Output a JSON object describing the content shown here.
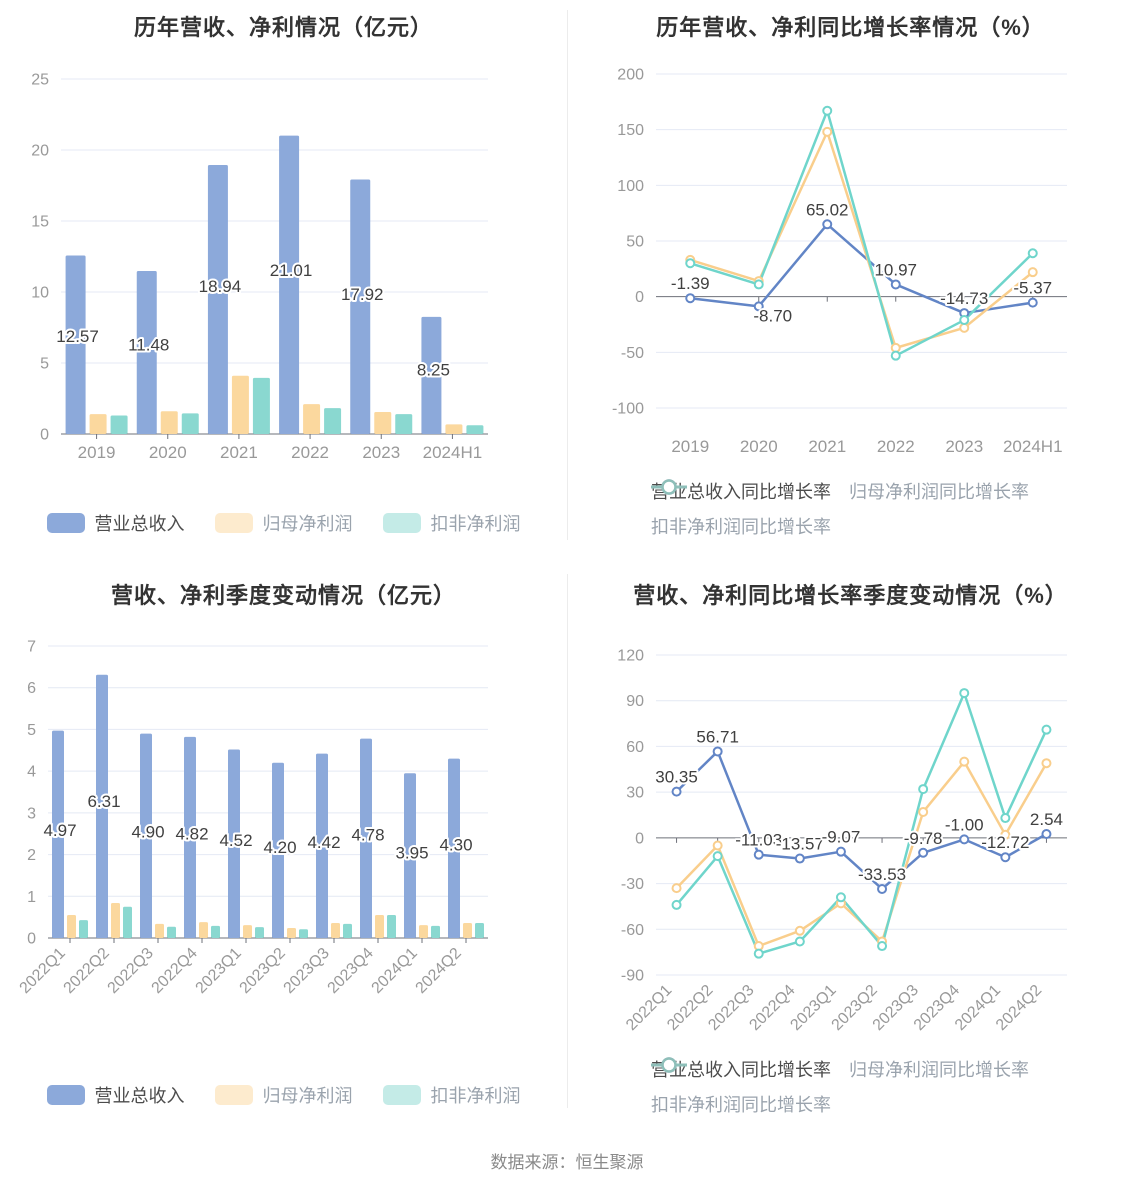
{
  "page": {
    "footer": "数据来源：恒生聚源"
  },
  "colors": {
    "bar_blue": "#8CA9DA",
    "bar_yellow": "#FBD89E",
    "bar_teal": "#8AD8D0",
    "line_blue": "#6285C6",
    "line_yellow": "#F9CE8C",
    "line_teal": "#6FD5CB",
    "grid": "#E4E9F4",
    "axis": "#6E7079",
    "tick_label": "#999999",
    "title": "#333333",
    "data_label": "#404040",
    "divider": "#ececec"
  },
  "chart_data": [
    {
      "type": "bar",
      "title": "历年营收、净利情况（亿元）",
      "ylim": [
        0,
        25
      ],
      "yticks": [
        0,
        5,
        10,
        15,
        20,
        25
      ],
      "grid": true,
      "legend_position": "bottom",
      "categories": [
        "2019",
        "2020",
        "2021",
        "2022",
        "2023",
        "2024H1"
      ],
      "series": [
        {
          "key": "revenue",
          "name": "营业总收入",
          "color": "#8CA9DA",
          "values": [
            12.57,
            11.48,
            18.94,
            21.01,
            17.92,
            8.25
          ],
          "labels": [
            "12.57",
            "11.48",
            "18.94",
            "21.01",
            "17.92",
            "8.25"
          ]
        },
        {
          "key": "net-profit",
          "name": "归母净利润",
          "color": "#FBD89E",
          "values": [
            1.4,
            1.6,
            4.1,
            2.1,
            1.55,
            0.68
          ]
        },
        {
          "key": "non-recurring-profit",
          "name": "扣非净利润",
          "color": "#8AD8D0",
          "values": [
            1.3,
            1.45,
            3.95,
            1.82,
            1.4,
            0.62
          ]
        }
      ]
    },
    {
      "type": "line",
      "title": "历年营收、净利同比增长率情况（%）",
      "ylim": [
        -100,
        200
      ],
      "yticks": [
        -100,
        -50,
        0,
        50,
        100,
        150,
        200
      ],
      "grid": true,
      "legend_position": "bottom",
      "categories": [
        "2019",
        "2020",
        "2021",
        "2022",
        "2023",
        "2024H1"
      ],
      "series": [
        {
          "key": "revenue-growth",
          "name": "营业总收入同比增长率",
          "color": "#6285C6",
          "values": [
            -1.39,
            -8.7,
            65.02,
            10.97,
            -14.73,
            -5.37
          ],
          "labels": [
            "-1.39",
            "-8.70",
            "65.02",
            "10.97",
            "-14.73",
            "-5.37"
          ]
        },
        {
          "key": "net-profit-growth",
          "name": "归母净利润同比增长率",
          "color": "#F9CE8C",
          "values": [
            33,
            14,
            148,
            -46,
            -28,
            22
          ]
        },
        {
          "key": "non-recurring-profit-growth",
          "name": "扣非净利润同比增长率",
          "color": "#6FD5CB",
          "values": [
            30,
            11,
            167,
            -53,
            -21,
            39
          ]
        }
      ]
    },
    {
      "type": "bar",
      "title": "营收、净利季度变动情况（亿元）",
      "ylim": [
        0,
        7
      ],
      "yticks": [
        0,
        1,
        2,
        3,
        4,
        5,
        6,
        7
      ],
      "grid": true,
      "legend_position": "bottom",
      "rotated_x_labels": true,
      "categories": [
        "2022Q1",
        "2022Q2",
        "2022Q3",
        "2022Q4",
        "2023Q1",
        "2023Q2",
        "2023Q3",
        "2023Q4",
        "2024Q1",
        "2024Q2"
      ],
      "series": [
        {
          "key": "revenue",
          "name": "营业总收入",
          "color": "#8CA9DA",
          "values": [
            4.97,
            6.31,
            4.9,
            4.82,
            4.52,
            4.2,
            4.42,
            4.78,
            3.95,
            4.3
          ],
          "labels": [
            "4.97",
            "6.31",
            "4.90",
            "4.82",
            "4.52",
            "4.20",
            "4.42",
            "4.78",
            "3.95",
            "4.30"
          ]
        },
        {
          "key": "net-profit",
          "name": "归母净利润",
          "color": "#FBD89E",
          "values": [
            0.55,
            0.84,
            0.34,
            0.38,
            0.31,
            0.24,
            0.36,
            0.55,
            0.31,
            0.36
          ]
        },
        {
          "key": "non-recurring-profit",
          "name": "扣非净利润",
          "color": "#8AD8D0",
          "values": [
            0.43,
            0.75,
            0.27,
            0.29,
            0.26,
            0.21,
            0.34,
            0.55,
            0.29,
            0.36
          ]
        }
      ]
    },
    {
      "type": "line",
      "title": "营收、净利同比增长率季度变动情况（%）",
      "ylim": [
        -90,
        120
      ],
      "yticks": [
        -90,
        -60,
        -30,
        0,
        30,
        60,
        90,
        120
      ],
      "grid": true,
      "legend_position": "bottom",
      "rotated_x_labels": true,
      "categories": [
        "2022Q1",
        "2022Q2",
        "2022Q3",
        "2022Q4",
        "2023Q1",
        "2023Q2",
        "2023Q3",
        "2023Q4",
        "2024Q1",
        "2024Q2"
      ],
      "series": [
        {
          "key": "revenue-growth",
          "name": "营业总收入同比增长率",
          "color": "#6285C6",
          "values": [
            30.35,
            56.71,
            -11.03,
            -13.57,
            -9.07,
            -33.53,
            -9.78,
            -1.0,
            -12.72,
            2.54
          ],
          "labels": [
            "30.35",
            "56.71",
            "-11.03",
            "-13.57",
            "-9.07",
            "-33.53",
            "-9.78",
            "-1.00",
            "-12.72",
            "2.54"
          ]
        },
        {
          "key": "net-profit-growth",
          "name": "归母净利润同比增长率",
          "color": "#F9CE8C",
          "values": [
            -33,
            -5,
            -71,
            -61,
            -43,
            -68,
            17,
            50,
            2,
            49
          ]
        },
        {
          "key": "non-recurring-profit-growth",
          "name": "扣非净利润同比增长率",
          "color": "#6FD5CB",
          "values": [
            -44,
            -12,
            -76,
            -68,
            -39,
            -71,
            32,
            95,
            13,
            71
          ]
        }
      ]
    }
  ]
}
